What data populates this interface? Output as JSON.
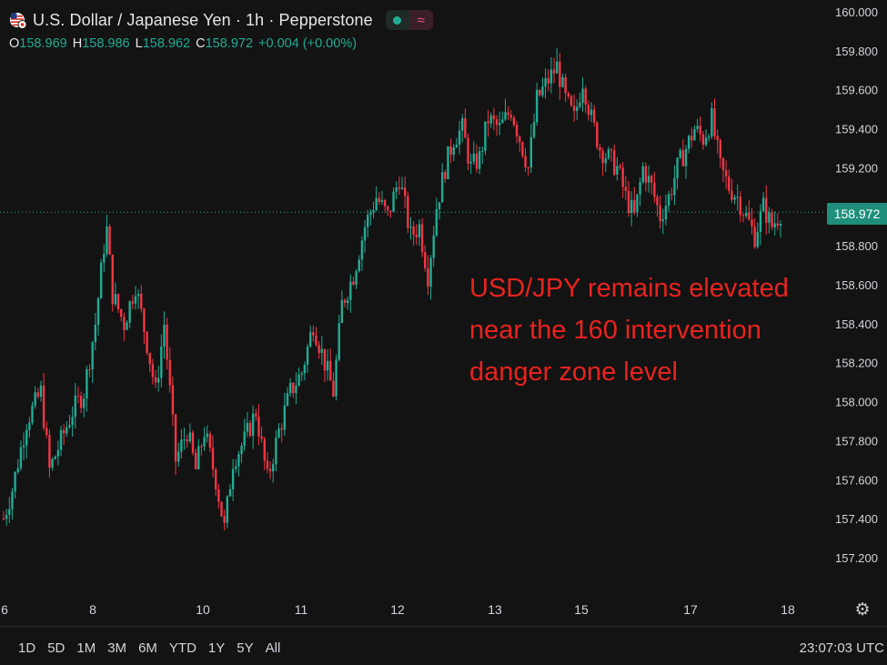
{
  "header": {
    "title": "U.S. Dollar / Japanese Yen · 1h · Pepperstone",
    "flag_icon": "usd-jpy-flag-icon",
    "ohlc": {
      "o_label": "O",
      "o": "158.969",
      "h_label": "H",
      "h": "158.986",
      "l_label": "L",
      "l": "158.962",
      "c_label": "C",
      "c": "158.972",
      "change": "+0.004 (+0.00%)"
    }
  },
  "annotation": {
    "line1": "USD/JPY remains elevated",
    "line2": "near the 160 intervention",
    "line3": "danger zone level"
  },
  "current_price_label": "158.972",
  "bottom": {
    "ranges": [
      "1D",
      "5D",
      "1M",
      "3M",
      "6M",
      "YTD",
      "1Y",
      "5Y",
      "All"
    ],
    "clock": "23:07:03 UTC"
  },
  "colors": {
    "background": "#131313",
    "up": "#22ab94",
    "down": "#f23645",
    "annotation": "#e8231f",
    "price_label": "#1f8f7c"
  },
  "chart_data": {
    "type": "candlestick",
    "y_ticks": [
      "160.000",
      "159.800",
      "159.600",
      "159.400",
      "159.200",
      "158.800",
      "158.600",
      "158.400",
      "158.200",
      "158.000",
      "157.800",
      "157.600",
      "157.400",
      "157.200"
    ],
    "x_ticks": [
      "6",
      "8",
      "10",
      "11",
      "12",
      "13",
      "15",
      "17",
      "18"
    ],
    "ylim": [
      157.05,
      160.05
    ],
    "current_price": 158.972,
    "anchors": [
      [
        0,
        157.4
      ],
      [
        3,
        157.55
      ],
      [
        8,
        157.9
      ],
      [
        13,
        158.05
      ],
      [
        16,
        157.65
      ],
      [
        20,
        157.8
      ],
      [
        24,
        157.95
      ],
      [
        28,
        158.05
      ],
      [
        32,
        158.4
      ],
      [
        35,
        158.8
      ],
      [
        36,
        158.88
      ],
      [
        38,
        158.55
      ],
      [
        42,
        158.4
      ],
      [
        46,
        158.6
      ],
      [
        50,
        158.3
      ],
      [
        53,
        158.05
      ],
      [
        56,
        158.4
      ],
      [
        60,
        157.7
      ],
      [
        64,
        157.85
      ],
      [
        67,
        157.65
      ],
      [
        70,
        157.85
      ],
      [
        74,
        157.6
      ],
      [
        77,
        157.35
      ],
      [
        80,
        157.7
      ],
      [
        84,
        157.8
      ],
      [
        88,
        157.95
      ],
      [
        92,
        157.6
      ],
      [
        96,
        157.85
      ],
      [
        100,
        158.05
      ],
      [
        104,
        158.15
      ],
      [
        108,
        158.4
      ],
      [
        112,
        158.2
      ],
      [
        115,
        158.05
      ],
      [
        118,
        158.5
      ],
      [
        122,
        158.65
      ],
      [
        126,
        158.9
      ],
      [
        130,
        159.05
      ],
      [
        134,
        158.95
      ],
      [
        138,
        159.15
      ],
      [
        142,
        158.85
      ],
      [
        145,
        158.9
      ],
      [
        148,
        158.65
      ],
      [
        151,
        159.0
      ],
      [
        154,
        159.2
      ],
      [
        157,
        159.35
      ],
      [
        160,
        159.4
      ],
      [
        163,
        159.2
      ],
      [
        166,
        159.25
      ],
      [
        169,
        159.45
      ],
      [
        173,
        159.4
      ],
      [
        177,
        159.5
      ],
      [
        180,
        159.35
      ],
      [
        183,
        159.2
      ],
      [
        186,
        159.55
      ],
      [
        190,
        159.65
      ],
      [
        193,
        159.72
      ],
      [
        196,
        159.55
      ],
      [
        199,
        159.45
      ],
      [
        202,
        159.65
      ],
      [
        205,
        159.45
      ],
      [
        208,
        159.3
      ],
      [
        211,
        159.25
      ],
      [
        214,
        159.2
      ],
      [
        217,
        159.05
      ],
      [
        220,
        158.95
      ],
      [
        223,
        159.2
      ],
      [
        226,
        159.1
      ],
      [
        229,
        158.95
      ],
      [
        232,
        159.05
      ],
      [
        235,
        159.2
      ],
      [
        238,
        159.3
      ],
      [
        241,
        159.4
      ],
      [
        244,
        159.35
      ],
      [
        247,
        159.45
      ],
      [
        250,
        159.2
      ],
      [
        253,
        159.1
      ],
      [
        256,
        159.05
      ],
      [
        259,
        158.95
      ],
      [
        262,
        158.85
      ],
      [
        265,
        159.0
      ],
      [
        268,
        158.9
      ],
      [
        271,
        158.97
      ]
    ]
  }
}
